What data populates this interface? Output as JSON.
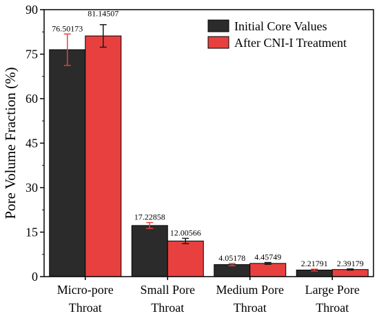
{
  "chart_data": {
    "type": "bar",
    "title": "",
    "xlabel": "",
    "ylabel": "Pore Volume Fraction (%)",
    "ylim": [
      0,
      90
    ],
    "yticks": [
      0,
      15,
      30,
      45,
      60,
      75,
      90
    ],
    "grid": false,
    "legend_position": "top-right",
    "categories": [
      [
        "Micro-pore",
        "Throat"
      ],
      [
        "Small Pore",
        "Throat"
      ],
      [
        "Medium Pore",
        "Throat"
      ],
      [
        "Large Pore",
        "Throat"
      ]
    ],
    "series": [
      {
        "name": "Initial Core Values",
        "color": "#2b2b2b",
        "values": [
          76.50173,
          17.22858,
          4.05178,
          2.21791
        ],
        "labels": [
          "76.50173",
          "17.22858",
          "4.05178",
          "2.21791"
        ],
        "errors": [
          5.3,
          1.0,
          0.4,
          0.3
        ],
        "error_color": "#e8403f"
      },
      {
        "name": "After CNI-I Treatment",
        "color": "#e8403f",
        "values": [
          81.14507,
          12.00566,
          4.45749,
          2.39179
        ],
        "labels": [
          "81.14507",
          "12.00566",
          "4.45749",
          "2.39179"
        ],
        "errors": [
          3.8,
          0.9,
          0.3,
          0.2
        ],
        "error_color": "#1a1a1a"
      }
    ]
  }
}
